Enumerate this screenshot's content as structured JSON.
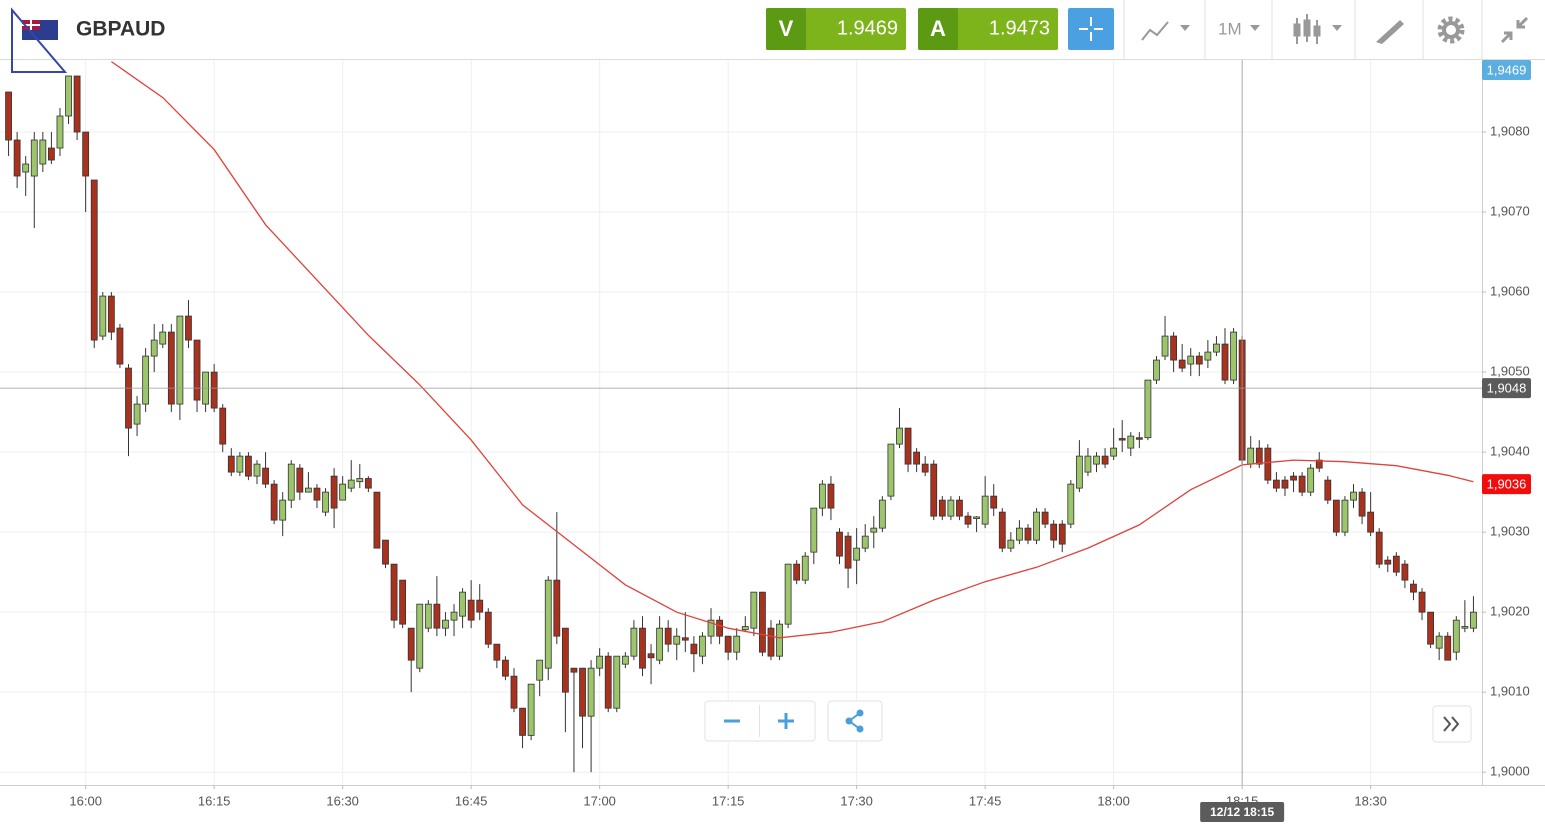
{
  "header": {
    "symbol": "GBPAUD",
    "sell": {
      "label": "V",
      "price": 1.9469
    },
    "buy": {
      "label": "A",
      "price": 1.9473
    },
    "timeframe": "1M"
  },
  "chart_data": {
    "type": "candlestick",
    "x": [
      "15:51",
      "15:52",
      "15:53",
      "15:54",
      "15:55",
      "15:56",
      "15:57",
      "15:58",
      "15:59",
      "16:00",
      "16:01",
      "16:02",
      "16:03",
      "16:04",
      "16:05",
      "16:06",
      "16:07",
      "16:08",
      "16:09",
      "16:10",
      "16:11",
      "16:12",
      "16:13",
      "16:14",
      "16:15",
      "16:16",
      "16:17",
      "16:18",
      "16:19",
      "16:20",
      "16:21",
      "16:22",
      "16:23",
      "16:24",
      "16:25",
      "16:26",
      "16:27",
      "16:28",
      "16:29",
      "16:30",
      "16:31",
      "16:32",
      "16:33",
      "16:34",
      "16:35",
      "16:36",
      "16:37",
      "16:38",
      "16:39",
      "16:40",
      "16:41",
      "16:42",
      "16:43",
      "16:44",
      "16:45",
      "16:46",
      "16:47",
      "16:48",
      "16:49",
      "16:50",
      "16:51",
      "16:52",
      "16:53",
      "16:54",
      "16:55",
      "16:56",
      "16:57",
      "16:58",
      "16:59",
      "17:00",
      "17:01",
      "17:02",
      "17:03",
      "17:04",
      "17:05",
      "17:06",
      "17:07",
      "17:08",
      "17:09",
      "17:10",
      "17:11",
      "17:12",
      "17:13",
      "17:14",
      "17:15",
      "17:16",
      "17:17",
      "17:18",
      "17:19",
      "17:20",
      "17:21",
      "17:22",
      "17:23",
      "17:24",
      "17:25",
      "17:26",
      "17:27",
      "17:28",
      "17:29",
      "17:30",
      "17:31",
      "17:32",
      "17:33",
      "17:34",
      "17:35",
      "17:36",
      "17:37",
      "17:38",
      "17:39",
      "17:40",
      "17:41",
      "17:42",
      "17:43",
      "17:44",
      "17:45",
      "17:46",
      "17:47",
      "17:48",
      "17:49",
      "17:50",
      "17:51",
      "17:52",
      "17:53",
      "17:54",
      "17:55",
      "17:56",
      "17:57",
      "17:58",
      "17:59",
      "18:00",
      "18:01",
      "18:02",
      "18:03",
      "18:04",
      "18:05",
      "18:06",
      "18:07",
      "18:08",
      "18:09",
      "18:10",
      "18:11",
      "18:12",
      "18:13",
      "18:14",
      "18:15",
      "18:16",
      "18:17",
      "18:18",
      "18:19",
      "18:20",
      "18:21",
      "18:22",
      "18:23",
      "18:24",
      "18:25",
      "18:26",
      "18:27",
      "18:28",
      "18:29",
      "18:30",
      "18:31",
      "18:32",
      "18:33",
      "18:34",
      "18:35",
      "18:36",
      "18:37",
      "18:38",
      "18:39",
      "18:40",
      "18:41",
      "18:42"
    ],
    "open": [
      1.9085,
      1.9079,
      1.9075,
      1.90745,
      1.9076,
      1.9078,
      1.9078,
      1.9082,
      1.9087,
      1.908,
      1.9074,
      1.90545,
      1.90595,
      1.90555,
      1.90505,
      1.90435,
      1.9046,
      1.9052,
      1.90535,
      1.9055,
      1.9046,
      1.9057,
      1.9054,
      1.9046,
      1.905,
      1.90455,
      1.90395,
      1.90375,
      1.90395,
      1.9037,
      1.9038,
      1.9036,
      1.90315,
      1.9034,
      1.9038,
      1.9035,
      1.90355,
      1.90325,
      1.9037,
      1.9034,
      1.90355,
      1.90363,
      1.90367,
      1.9035,
      1.9029,
      1.9026,
      1.9024,
      1.9018,
      1.9013,
      1.9018,
      1.9021,
      1.9018,
      1.9019,
      1.90195,
      1.90215,
      1.90215,
      1.902,
      1.9016,
      1.9014,
      1.9012,
      1.9008,
      1.90046,
      1.90115,
      1.9013,
      1.9024,
      1.9018,
      1.9013,
      1.9013,
      1.9007,
      1.9013,
      1.90145,
      1.9008,
      1.90135,
      1.90145,
      1.9018,
      1.90148,
      1.9014,
      1.9018,
      1.9016,
      1.90168,
      1.9016,
      1.90145,
      1.9017,
      1.9019,
      1.9017,
      1.9015,
      1.90178,
      1.9018,
      1.90225,
      1.9018,
      1.90145,
      1.90185,
      1.9026,
      1.9024,
      1.90275,
      1.9033,
      1.9036,
      1.903,
      1.90295,
      1.90265,
      1.9028,
      1.903,
      1.90305,
      1.90345,
      1.9041,
      1.9043,
      1.904,
      1.90385,
      1.90385,
      1.9034,
      1.9032,
      1.9034,
      1.9032,
      1.90317,
      1.9031,
      1.90345,
      1.90325,
      1.9028,
      1.9029,
      1.90305,
      1.9029,
      1.90325,
      1.9031,
      1.9031,
      1.9031,
      1.90355,
      1.90375,
      1.90385,
      1.90395,
      1.90395,
      1.90417,
      1.90405,
      1.90418,
      1.90418,
      1.9049,
      1.9052,
      1.90545,
      1.90515,
      1.9051,
      1.9052,
      1.90515,
      1.90525,
      1.90535,
      1.9049,
      1.9054,
      1.90385,
      1.90405,
      1.90405,
      1.90365,
      1.90365,
      1.9037,
      1.9037,
      1.9035,
      1.9039,
      1.90365,
      1.9034,
      1.903,
      1.9034,
      1.9035,
      1.90325,
      1.903,
      1.90265,
      1.9027,
      1.9026,
      1.90235,
      1.90225,
      1.902,
      1.90155,
      1.9017,
      1.9015,
      1.9018,
      1.9018
    ],
    "high": [
      1.9085,
      1.908,
      1.9077,
      1.908,
      1.908,
      1.908,
      1.9083,
      1.9087,
      1.9087,
      1.908,
      1.9074,
      1.906,
      1.906,
      1.9056,
      1.9051,
      1.9047,
      1.9053,
      1.9056,
      1.9056,
      1.9056,
      1.9057,
      1.9059,
      1.9054,
      1.905,
      1.9051,
      1.9046,
      1.90405,
      1.904,
      1.904,
      1.9039,
      1.904,
      1.90365,
      1.9035,
      1.9039,
      1.90385,
      1.90375,
      1.9036,
      1.90355,
      1.9038,
      1.9037,
      1.9039,
      1.90385,
      1.9037,
      1.9035,
      1.9029,
      1.9026,
      1.9024,
      1.9018,
      1.9021,
      1.90215,
      1.90245,
      1.902,
      1.9021,
      1.9023,
      1.9024,
      1.90235,
      1.90205,
      1.9016,
      1.90145,
      1.9013,
      1.9008,
      1.9011,
      1.9014,
      1.90245,
      1.90325,
      1.9018,
      1.9013,
      1.9013,
      1.9014,
      1.90155,
      1.9015,
      1.90145,
      1.9015,
      1.9019,
      1.90195,
      1.9016,
      1.90195,
      1.9019,
      1.9018,
      1.902,
      1.9017,
      1.90175,
      1.90205,
      1.90195,
      1.9017,
      1.9018,
      1.90195,
      1.90225,
      1.90225,
      1.9019,
      1.9019,
      1.9026,
      1.90265,
      1.90275,
      1.9033,
      1.90365,
      1.9037,
      1.90305,
      1.903,
      1.90305,
      1.9031,
      1.9032,
      1.90345,
      1.9041,
      1.90455,
      1.9043,
      1.90405,
      1.90395,
      1.9039,
      1.90345,
      1.90345,
      1.90345,
      1.90325,
      1.9032,
      1.9037,
      1.9036,
      1.9033,
      1.903,
      1.90315,
      1.9031,
      1.9033,
      1.9033,
      1.90315,
      1.90315,
      1.90365,
      1.90415,
      1.90405,
      1.904,
      1.90405,
      1.9043,
      1.9044,
      1.90425,
      1.90425,
      1.9049,
      1.9052,
      1.9057,
      1.9055,
      1.90535,
      1.9053,
      1.90525,
      1.9054,
      1.90545,
      1.90555,
      1.90555,
      1.90545,
      1.9042,
      1.90415,
      1.9041,
      1.90375,
      1.9037,
      1.90375,
      1.90375,
      1.90385,
      1.904,
      1.9037,
      1.9034,
      1.90345,
      1.9036,
      1.90355,
      1.9035,
      1.90305,
      1.9027,
      1.90275,
      1.90265,
      1.9024,
      1.9023,
      1.902,
      1.90175,
      1.90175,
      1.90195,
      1.90215,
      1.9022
    ],
    "low": [
      1.9077,
      1.9073,
      1.9072,
      1.9068,
      1.9075,
      1.9076,
      1.9077,
      1.9081,
      1.9079,
      1.907,
      1.9053,
      1.9054,
      1.9054,
      1.90505,
      1.90395,
      1.9042,
      1.9045,
      1.905,
      1.9053,
      1.9045,
      1.9044,
      1.9053,
      1.9045,
      1.9045,
      1.9045,
      1.904,
      1.9037,
      1.9037,
      1.90365,
      1.9036,
      1.90355,
      1.9031,
      1.90295,
      1.9033,
      1.9034,
      1.9035,
      1.9033,
      1.9032,
      1.90305,
      1.9034,
      1.9035,
      1.90355,
      1.9035,
      1.9028,
      1.90255,
      1.9018,
      1.9018,
      1.901,
      1.90125,
      1.90175,
      1.9017,
      1.9017,
      1.9017,
      1.9018,
      1.9018,
      1.9019,
      1.90155,
      1.9013,
      1.90115,
      1.90075,
      1.9003,
      1.9004,
      1.90095,
      1.90115,
      1.9016,
      1.9005,
      1.9,
      1.9003,
      1.9,
      1.9012,
      1.90075,
      1.90075,
      1.9013,
      1.9014,
      1.9012,
      1.9011,
      1.90135,
      1.9015,
      1.9014,
      1.9015,
      1.90125,
      1.90135,
      1.9016,
      1.9016,
      1.9014,
      1.9014,
      1.90175,
      1.9017,
      1.90145,
      1.9014,
      1.9014,
      1.9018,
      1.90235,
      1.90235,
      1.9026,
      1.9032,
      1.90315,
      1.9026,
      1.9023,
      1.90235,
      1.90275,
      1.9028,
      1.903,
      1.9034,
      1.90405,
      1.90375,
      1.90375,
      1.9037,
      1.90315,
      1.90315,
      1.90315,
      1.90315,
      1.90305,
      1.903,
      1.90305,
      1.9032,
      1.90275,
      1.90275,
      1.90285,
      1.90285,
      1.90285,
      1.90305,
      1.9028,
      1.90275,
      1.90305,
      1.9035,
      1.9037,
      1.90375,
      1.9038,
      1.9039,
      1.904,
      1.90395,
      1.90405,
      1.90415,
      1.90485,
      1.90515,
      1.905,
      1.905,
      1.90495,
      1.90495,
      1.90505,
      1.9052,
      1.90485,
      1.90485,
      1.90385,
      1.9038,
      1.9038,
      1.9036,
      1.9035,
      1.90345,
      1.9035,
      1.90345,
      1.90345,
      1.90375,
      1.90335,
      1.90295,
      1.90295,
      1.9033,
      1.9031,
      1.90295,
      1.90255,
      1.9025,
      1.90245,
      1.9023,
      1.90215,
      1.9019,
      1.90155,
      1.9014,
      1.9014,
      1.9014,
      1.90175,
      1.90175
    ],
    "close": [
      1.9079,
      1.90745,
      1.9076,
      1.9079,
      1.9079,
      1.90765,
      1.9082,
      1.9087,
      1.908,
      1.90745,
      1.9054,
      1.90595,
      1.9055,
      1.9051,
      1.9043,
      1.9046,
      1.9052,
      1.9054,
      1.9055,
      1.9046,
      1.9057,
      1.9054,
      1.90465,
      1.905,
      1.90455,
      1.9041,
      1.90375,
      1.90395,
      1.9037,
      1.90385,
      1.9036,
      1.90315,
      1.9034,
      1.90385,
      1.9035,
      1.90355,
      1.9034,
      1.9035,
      1.9033,
      1.9036,
      1.90365,
      1.90367,
      1.90355,
      1.9028,
      1.9026,
      1.9019,
      1.90185,
      1.9014,
      1.9021,
      1.9021,
      1.9018,
      1.9019,
      1.902,
      1.90225,
      1.9019,
      1.902,
      1.9016,
      1.9014,
      1.9012,
      1.9008,
      1.90046,
      1.9011,
      1.9014,
      1.9024,
      1.9017,
      1.901,
      1.90125,
      1.9007,
      1.9013,
      1.90145,
      1.9008,
      1.90145,
      1.90145,
      1.9018,
      1.9013,
      1.90143,
      1.9018,
      1.9016,
      1.9017,
      1.90165,
      1.90148,
      1.9017,
      1.9019,
      1.9017,
      1.9015,
      1.9017,
      1.90182,
      1.90225,
      1.9015,
      1.90145,
      1.90185,
      1.9026,
      1.9024,
      1.9027,
      1.9033,
      1.9036,
      1.9033,
      1.9027,
      1.90255,
      1.9028,
      1.90295,
      1.90305,
      1.9034,
      1.9041,
      1.9043,
      1.90385,
      1.90385,
      1.90375,
      1.9032,
      1.9032,
      1.9034,
      1.9032,
      1.9031,
      1.90319,
      1.90345,
      1.9033,
      1.9028,
      1.9029,
      1.90305,
      1.9029,
      1.90325,
      1.9031,
      1.9029,
      1.90285,
      1.9036,
      1.90395,
      1.90395,
      1.90395,
      1.90385,
      1.90405,
      1.90415,
      1.9042,
      1.90416,
      1.9049,
      1.90515,
      1.90545,
      1.90515,
      1.90505,
      1.9052,
      1.9051,
      1.90525,
      1.90535,
      1.9049,
      1.9055,
      1.9039,
      1.90405,
      1.90385,
      1.90365,
      1.90355,
      1.90355,
      1.90365,
      1.9035,
      1.9038,
      1.9038,
      1.9034,
      1.903,
      1.9034,
      1.9035,
      1.9032,
      1.903,
      1.9026,
      1.9026,
      1.9025,
      1.9024,
      1.90225,
      1.902,
      1.9016,
      1.9017,
      1.9014,
      1.9019,
      1.90182,
      1.902
    ],
    "up_color": "#9cc56c",
    "down_color": "#a8321e",
    "moving_average": {
      "color": "#e0413a",
      "x": [
        "16:03",
        "16:09",
        "16:15",
        "16:21",
        "16:27",
        "16:33",
        "16:39",
        "16:45",
        "16:51",
        "16:57",
        "17:03",
        "17:09",
        "17:15",
        "17:21",
        "17:27",
        "17:33",
        "17:39",
        "17:45",
        "17:51",
        "17:57",
        "18:03",
        "18:09",
        "18:15",
        "18:21",
        "18:27",
        "18:33",
        "18:39",
        "18:42"
      ],
      "values": [
        1.90888,
        1.90843,
        1.90778,
        1.90684,
        1.90615,
        1.90546,
        1.90484,
        1.90415,
        1.90334,
        1.90284,
        1.90234,
        1.902,
        1.9018,
        1.90168,
        1.90175,
        1.90188,
        1.90215,
        1.90238,
        1.90256,
        1.9028,
        1.90309,
        1.90353,
        1.90384,
        1.9039,
        1.90388,
        1.90383,
        1.90371,
        1.90363
      ]
    },
    "xlim": [
      "15:50",
      "18:43"
    ],
    "ylim": [
      1.89984,
      1.9089
    ],
    "xticks": [
      "16:00",
      "16:15",
      "16:30",
      "16:45",
      "17:00",
      "17:15",
      "17:30",
      "17:45",
      "18:00",
      "18:15",
      "18:30"
    ],
    "yticks": [
      {
        "value": 1.9,
        "label": "1,9000"
      },
      {
        "value": 1.901,
        "label": "1,9010"
      },
      {
        "value": 1.902,
        "label": "1,9020"
      },
      {
        "value": 1.903,
        "label": "1,9030"
      },
      {
        "value": 1.904,
        "label": "1,9040"
      },
      {
        "value": 1.905,
        "label": "1,9050"
      },
      {
        "value": 1.906,
        "label": "1,9060"
      },
      {
        "value": 1.907,
        "label": "1,9070"
      },
      {
        "value": 1.908,
        "label": "1,9080"
      }
    ],
    "grid": true,
    "crosshair": {
      "value": 1.9048,
      "label": "1,9048",
      "time_label": "12/12 18:15",
      "color": "#5b5b5b"
    },
    "price_labels": [
      {
        "value": 1.9469,
        "label": "1,9469",
        "color": "#5aaee0"
      },
      {
        "value": 1.9036,
        "label": "1,9036",
        "color": "#f20d0d"
      }
    ]
  }
}
